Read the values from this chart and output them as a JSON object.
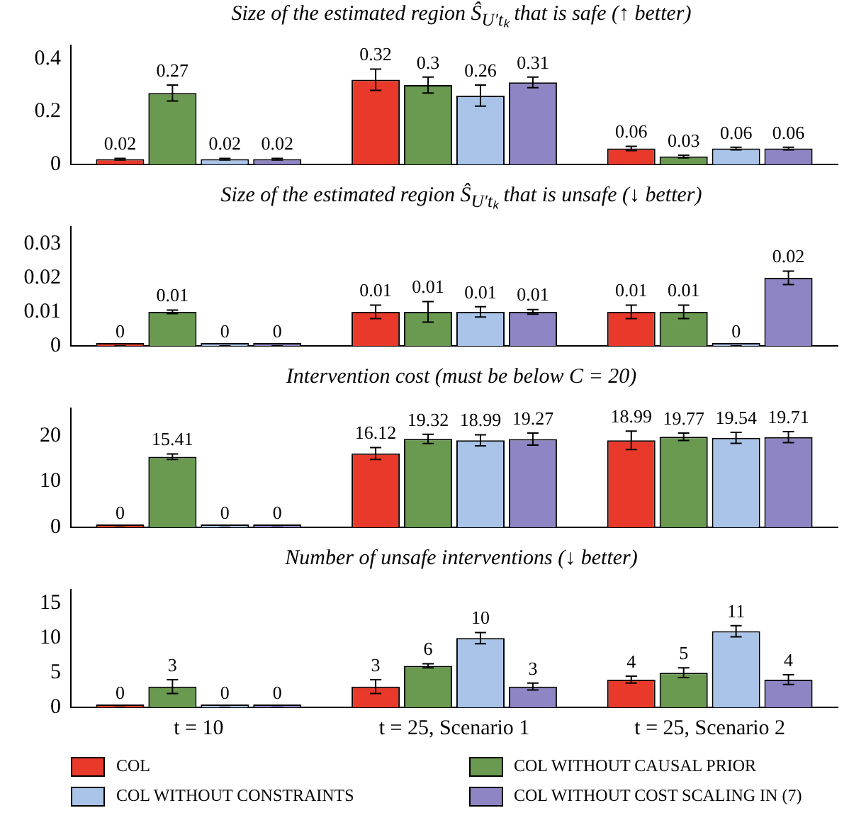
{
  "chart_data": [
    {
      "type": "bar",
      "title": "Size of the estimated region Ŝ$_{U′tₖ}$ that is safe (↑ better)",
      "categories": [
        null,
        null,
        null
      ],
      "ylim": [
        0,
        0.45
      ],
      "yticks": [
        0,
        0.2,
        0.4
      ],
      "tick_labels": "y",
      "data_labels": true,
      "series": [
        {
          "color": "#e8392b",
          "values": [
            0.02,
            0.32,
            0.06
          ],
          "errors": [
            0.003,
            0.04,
            0.008
          ]
        },
        {
          "color": "#6a9a50",
          "values": [
            0.27,
            0.3,
            0.03
          ],
          "errors": [
            0.03,
            0.03,
            0.005
          ]
        },
        {
          "color": "#a9c4e8",
          "values": [
            0.02,
            0.26,
            0.06
          ],
          "errors": [
            0.003,
            0.04,
            0.005
          ]
        },
        {
          "color": "#8e86c4",
          "values": [
            0.02,
            0.31,
            0.06
          ],
          "errors": [
            0.003,
            0.02,
            0.005
          ]
        }
      ]
    },
    {
      "type": "bar",
      "title": "Size of the estimated region Ŝ$_{U′tₖ}$ that is unsafe (↓ better)",
      "categories": [
        null,
        null,
        null
      ],
      "ylim": [
        0,
        0.035
      ],
      "yticks": [
        0,
        0.01,
        0.02,
        0.03
      ],
      "tick_labels": "y",
      "data_labels": true,
      "series": [
        {
          "color": "#e8392b",
          "values": [
            0,
            0.01,
            0.01
          ],
          "errors": [
            0,
            0.002,
            0.002
          ]
        },
        {
          "color": "#6a9a50",
          "values": [
            0.01,
            0.01,
            0.01
          ],
          "errors": [
            0.0005,
            0.003,
            0.002
          ]
        },
        {
          "color": "#a9c4e8",
          "values": [
            0,
            0.01,
            0
          ],
          "errors": [
            0,
            0.0015,
            0
          ]
        },
        {
          "color": "#8e86c4",
          "values": [
            0,
            0.01,
            0.02
          ],
          "errors": [
            0,
            0.0007,
            0.002
          ]
        }
      ]
    },
    {
      "type": "bar",
      "title": "Intervention cost (must be below C = 20)",
      "categories": [
        null,
        null,
        null
      ],
      "ylim": [
        0,
        26
      ],
      "yticks": [
        0,
        10,
        20
      ],
      "tick_labels": "y",
      "data_labels": true,
      "series": [
        {
          "color": "#e8392b",
          "values": [
            0,
            16.12,
            18.99
          ],
          "errors": [
            0,
            1.3,
            2
          ]
        },
        {
          "color": "#6a9a50",
          "values": [
            15.41,
            19.32,
            19.77
          ],
          "errors": [
            0.6,
            1,
            0.8
          ]
        },
        {
          "color": "#a9c4e8",
          "values": [
            0,
            18.99,
            19.54
          ],
          "errors": [
            0,
            1.2,
            1.2
          ]
        },
        {
          "color": "#8e86c4",
          "values": [
            0,
            19.27,
            19.71
          ],
          "errors": [
            0,
            1.3,
            1.2
          ]
        }
      ]
    },
    {
      "type": "bar",
      "title": "Number of unsafe interventions (↓ better)",
      "categories": [
        "t = 10",
        "t = 25, Scenario 1",
        "t = 25, Scenario 2"
      ],
      "ylim": [
        0,
        17
      ],
      "yticks": [
        0,
        5,
        10,
        15
      ],
      "data_labels": true,
      "legend": "bottom",
      "series": [
        {
          "name": "COL",
          "color": "#e8392b",
          "values": [
            0,
            3,
            4
          ],
          "errors": [
            0,
            1,
            0.5
          ]
        },
        {
          "name": "COL WITHOUT CAUSAL PRIOR",
          "color": "#6a9a50",
          "values": [
            3,
            6,
            5
          ],
          "errors": [
            1,
            0.3,
            0.7
          ]
        },
        {
          "name": "COL WITHOUT CONSTRAINTS",
          "color": "#a9c4e8",
          "values": [
            0,
            10,
            11
          ],
          "errors": [
            0,
            0.8,
            0.8
          ]
        },
        {
          "name": "COL WITHOUT COST SCALING IN (7)",
          "color": "#8e86c4",
          "values": [
            0,
            3,
            4
          ],
          "errors": [
            0,
            0.5,
            0.7
          ]
        }
      ]
    }
  ]
}
